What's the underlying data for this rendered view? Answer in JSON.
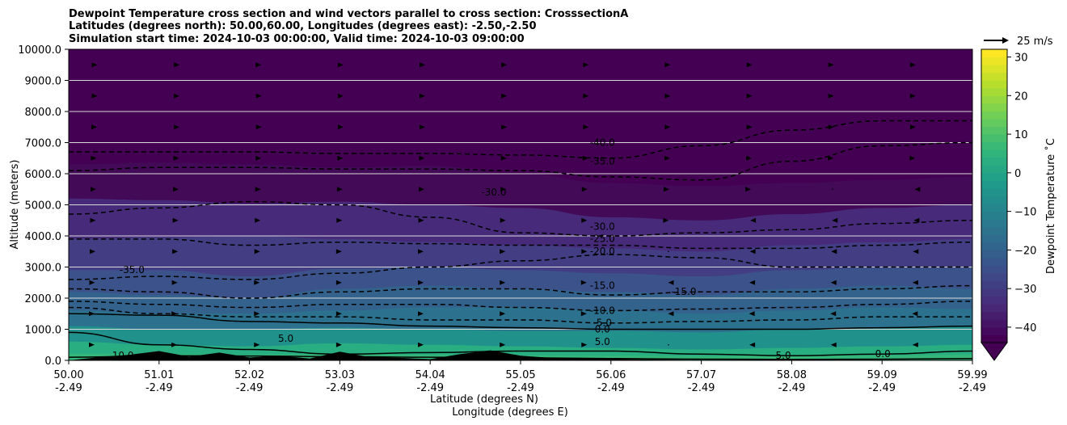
{
  "chart_data": {
    "type": "heatmap",
    "title_lines": [
      "Dewpoint Temperature cross section and wind vectors parallel to cross section: CrosssectionA",
      "Latitudes (degrees north): 50.00,60.00, Longitudes (degrees east): -2.50,-2.50",
      "Simulation start time: 2024-10-03 00:00:00, Valid time: 2024-10-03 09:00:00"
    ],
    "xlabel_lines": [
      "Latitude (degrees N)",
      "Longitude (degrees E)"
    ],
    "ylabel": "Altitude (meters)",
    "colorbar_label": "Dewpoint Temperature ˚C",
    "quiver_key_label": "25 m/s",
    "x_ticks": [
      {
        "lat": "50.00",
        "lon": "-2.49"
      },
      {
        "lat": "51.01",
        "lon": "-2.49"
      },
      {
        "lat": "52.02",
        "lon": "-2.49"
      },
      {
        "lat": "53.03",
        "lon": "-2.49"
      },
      {
        "lat": "54.04",
        "lon": "-2.49"
      },
      {
        "lat": "55.05",
        "lon": "-2.49"
      },
      {
        "lat": "56.06",
        "lon": "-2.49"
      },
      {
        "lat": "57.07",
        "lon": "-2.49"
      },
      {
        "lat": "58.08",
        "lon": "-2.49"
      },
      {
        "lat": "59.09",
        "lon": "-2.49"
      },
      {
        "lat": "59.99",
        "lon": "-2.49"
      }
    ],
    "xlim": [
      50.0,
      59.99
    ],
    "ylim": [
      0,
      10000
    ],
    "y_ticks": [
      "0.0",
      "1000.0",
      "2000.0",
      "3000.0",
      "4000.0",
      "5000.0",
      "6000.0",
      "7000.0",
      "8000.0",
      "9000.0",
      "10000.0"
    ],
    "grid_horizontal": true,
    "colorbar_ticks": [
      "−40",
      "−30",
      "−20",
      "−10",
      "0",
      "10",
      "20",
      "30"
    ],
    "colorbar_range": [
      -44,
      32
    ],
    "colorbar_extend": "min",
    "colormap": [
      "#440154",
      "#482878",
      "#3e4989",
      "#31688e",
      "#26828e",
      "#1f9e89",
      "#35b779",
      "#6ece58",
      "#b5de2b",
      "#fde725"
    ],
    "temperature_layers": [
      {
        "top_alt": [
          6300,
          6350,
          6300,
          6200,
          6250,
          6000,
          5700,
          5600,
          5700,
          5800,
          5900
        ],
        "color": "#430a57"
      },
      {
        "top_alt": [
          5200,
          5150,
          5050,
          5100,
          5000,
          4900,
          4600,
          4500,
          4700,
          4900,
          5000
        ],
        "color": "#472b7a"
      },
      {
        "top_alt": [
          3900,
          3950,
          4000,
          3900,
          3800,
          3700,
          3600,
          3500,
          3700,
          3800,
          3900
        ],
        "color": "#433d84"
      },
      {
        "top_alt": [
          2900,
          2900,
          2700,
          2950,
          3000,
          2900,
          2800,
          2700,
          2900,
          3000,
          3000
        ],
        "color": "#3b528b"
      },
      {
        "top_alt": [
          2200,
          2100,
          2000,
          2300,
          2400,
          2300,
          2200,
          2100,
          2300,
          2400,
          2300
        ],
        "color": "#33638d"
      },
      {
        "top_alt": [
          1600,
          1500,
          1500,
          1600,
          1700,
          1700,
          1600,
          1500,
          1600,
          1700,
          1650
        ],
        "color": "#2c728e"
      },
      {
        "top_alt": [
          1100,
          1000,
          1000,
          1050,
          1000,
          950,
          950,
          900,
          1000,
          1050,
          1100
        ],
        "color": "#21918c"
      },
      {
        "top_alt": [
          600,
          500,
          450,
          550,
          500,
          450,
          400,
          350,
          400,
          450,
          500
        ],
        "color": "#28ae80"
      },
      {
        "top_alt": [
          200,
          200,
          180,
          200,
          180,
          160,
          150,
          140,
          150,
          160,
          180
        ],
        "color": "#35b779"
      }
    ],
    "contours": [
      {
        "level": -40.0,
        "style": "dashed",
        "alt": [
          6700,
          6700,
          6700,
          6650,
          6650,
          6600,
          6500,
          6900,
          7400,
          7700,
          7700
        ]
      },
      {
        "level": -35.0,
        "style": "dashed",
        "alt": [
          6100,
          6200,
          6200,
          6150,
          6150,
          6100,
          5900,
          5800,
          6400,
          6900,
          7000
        ]
      },
      {
        "level": -30.0,
        "style": "dashed",
        "alt": [
          4700,
          4900,
          5100,
          5000,
          4600,
          4100,
          4000,
          4100,
          4200,
          4400,
          4500
        ]
      },
      {
        "level": -25.0,
        "style": "dashed",
        "alt": [
          3900,
          3900,
          3700,
          3800,
          3750,
          3700,
          3700,
          3600,
          3600,
          3700,
          3800
        ]
      },
      {
        "level": -20.0,
        "style": "dashed",
        "alt": [
          2600,
          2700,
          2600,
          2800,
          3000,
          3200,
          3400,
          3300,
          3000,
          3000,
          3000
        ]
      },
      {
        "level": -15.0,
        "style": "dashed",
        "alt": [
          2300,
          2200,
          2000,
          2200,
          2300,
          2300,
          2100,
          2200,
          2200,
          2300,
          2400
        ]
      },
      {
        "level": -10.0,
        "style": "dashed",
        "alt": [
          1900,
          1800,
          1700,
          1800,
          1800,
          1700,
          1600,
          1650,
          1700,
          1800,
          1900
        ]
      },
      {
        "level": -5.0,
        "style": "dashed",
        "alt": [
          1700,
          1500,
          1400,
          1400,
          1300,
          1300,
          1200,
          1250,
          1300,
          1400,
          1400
        ]
      },
      {
        "level": 0.0,
        "style": "solid",
        "alt": [
          1500,
          1450,
          1250,
          1200,
          1100,
          1050,
          1000,
          1000,
          1000,
          1050,
          1100
        ]
      },
      {
        "level": 5.0,
        "style": "solid",
        "alt": [
          900,
          500,
          350,
          200,
          250,
          300,
          300,
          200,
          150,
          200,
          300
        ]
      },
      {
        "level": 10.0,
        "style": "solid",
        "alt": [
          100,
          150,
          140,
          120,
          100,
          80,
          60,
          40,
          30,
          40,
          60
        ]
      }
    ],
    "contour_labels": [
      {
        "text": "-40.0",
        "lat": 55.9,
        "alt": 6900
      },
      {
        "text": "-35.0",
        "lat": 55.9,
        "alt": 6300
      },
      {
        "text": "-30.0",
        "lat": 54.7,
        "alt": 5300
      },
      {
        "text": "-35.0",
        "lat": 50.7,
        "alt": 2800
      },
      {
        "text": "-30.0",
        "lat": 55.9,
        "alt": 4200
      },
      {
        "text": "-25.0",
        "lat": 55.9,
        "alt": 3800
      },
      {
        "text": "-20.0",
        "lat": 55.9,
        "alt": 3400
      },
      {
        "text": "-15.0",
        "lat": 55.9,
        "alt": 2300
      },
      {
        "text": "-15.0",
        "lat": 56.8,
        "alt": 2100
      },
      {
        "text": "-10.0",
        "lat": 55.9,
        "alt": 1500
      },
      {
        "text": "-5.0",
        "lat": 55.9,
        "alt": 1100
      },
      {
        "text": "0.0",
        "lat": 55.9,
        "alt": 900
      },
      {
        "text": "5.0",
        "lat": 55.9,
        "alt": 500
      },
      {
        "text": "5.0",
        "lat": 57.9,
        "alt": 50
      },
      {
        "text": "5.0",
        "lat": 52.4,
        "alt": 600
      },
      {
        "text": "10.0",
        "lat": 50.6,
        "alt": 50
      },
      {
        "text": "0.0",
        "lat": 59.0,
        "alt": 100
      }
    ],
    "terrain_alt": [
      0,
      100,
      180,
      300,
      120,
      250,
      90,
      150,
      60,
      280,
      100,
      80,
      40,
      200,
      320,
      150,
      80,
      60,
      40,
      30,
      20,
      10,
      0,
      0,
      0,
      0,
      0,
      0,
      0,
      0,
      0
    ],
    "wind_u": [
      [
        3,
        4,
        5,
        5,
        4,
        3,
        2,
        0,
        -3,
        -5,
        -6
      ],
      [
        3,
        4,
        5,
        5,
        4,
        3,
        1,
        -1,
        -4,
        -6,
        -7
      ],
      [
        4,
        5,
        5,
        5,
        4,
        3,
        1,
        -1,
        -3,
        -5,
        -6
      ],
      [
        5,
        6,
        6,
        5,
        4,
        3,
        2,
        0,
        -2,
        -4,
        -5
      ],
      [
        6,
        7,
        7,
        6,
        5,
        4,
        2,
        1,
        -1,
        -2,
        -3
      ],
      [
        7,
        8,
        8,
        7,
        6,
        5,
        3,
        2,
        1,
        0,
        -1
      ],
      [
        8,
        9,
        9,
        8,
        7,
        6,
        5,
        4,
        3,
        2,
        1
      ],
      [
        9,
        10,
        10,
        9,
        8,
        7,
        6,
        5,
        4,
        3,
        2
      ],
      [
        10,
        10,
        10,
        9,
        8,
        7,
        6,
        5,
        4,
        3,
        2
      ],
      [
        10,
        10,
        9,
        9,
        8,
        7,
        6,
        5,
        4,
        3,
        2
      ]
    ]
  }
}
